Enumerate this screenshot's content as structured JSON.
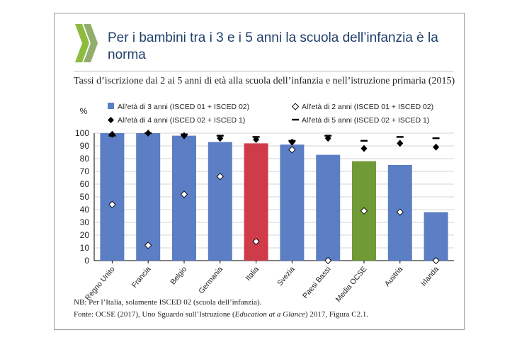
{
  "header": {
    "title": "Per i bambini tra i 3 e i 5 anni la scuola dell’infanzia è la norma",
    "logo_icon": "oecd-chevrons-icon"
  },
  "colors": {
    "title": "#1f3f6b",
    "bar_default": "#5b7ec4",
    "bar_italy": "#cf3b48",
    "bar_oecd": "#6f9a36",
    "logo_green": "#8dbb3f",
    "logo_grey": "#9aa0a6"
  },
  "chart_data": {
    "type": "bar",
    "title": "Tassi d’iscrizione dai 2 ai 5 anni di età alla scuola dell’infanzia e nell’istruzione primaria (2015)",
    "ylabel": "%",
    "ylim": [
      0,
      100
    ],
    "yticks": [
      0,
      10,
      20,
      30,
      40,
      50,
      60,
      70,
      80,
      90,
      100
    ],
    "categories": [
      "Regno Unito",
      "Francia",
      "Belgio",
      "Germania",
      "Italia",
      "Svezia",
      "Paesi Bassi",
      "Media OCSE",
      "Austria",
      "Irlanda"
    ],
    "highlight": {
      "Italia": "bar_italy",
      "Media OCSE": "bar_oecd"
    },
    "series": [
      {
        "name": "All'età di 3 anni  (ISCED 01 + ISCED 02)",
        "marker": "bar",
        "values": [
          100,
          100,
          98,
          93,
          92,
          91,
          83,
          78,
          75,
          38
        ]
      },
      {
        "name": "All'età di 2 anni  (ISCED 01 + ISCED 02)",
        "marker": "hollow-diamond",
        "values": [
          44,
          12,
          52,
          66,
          15,
          87,
          0,
          39,
          38,
          0
        ]
      },
      {
        "name": "All'età di 4 anni (ISCED 02 + ISCED 1)",
        "marker": "filled-diamond",
        "values": [
          99,
          100,
          98,
          96,
          95,
          93,
          96,
          88,
          92,
          89
        ]
      },
      {
        "name": "All'età di 5 anni (ISCED 02 + ISCED 1)",
        "marker": "dash",
        "values": [
          98,
          100,
          99,
          98,
          97,
          94,
          98,
          94,
          97,
          96
        ]
      }
    ]
  },
  "footer": {
    "note": "NB: Per l’Italia, solamente ISCED 02 (scuola dell’infanzia).",
    "source_prefix": "Fonte: OCSE (2017), Uno Sguardo sull’Istruzione (",
    "source_italic": "Education at a Glance",
    "source_suffix": ") 2017, Figura C2.1."
  }
}
